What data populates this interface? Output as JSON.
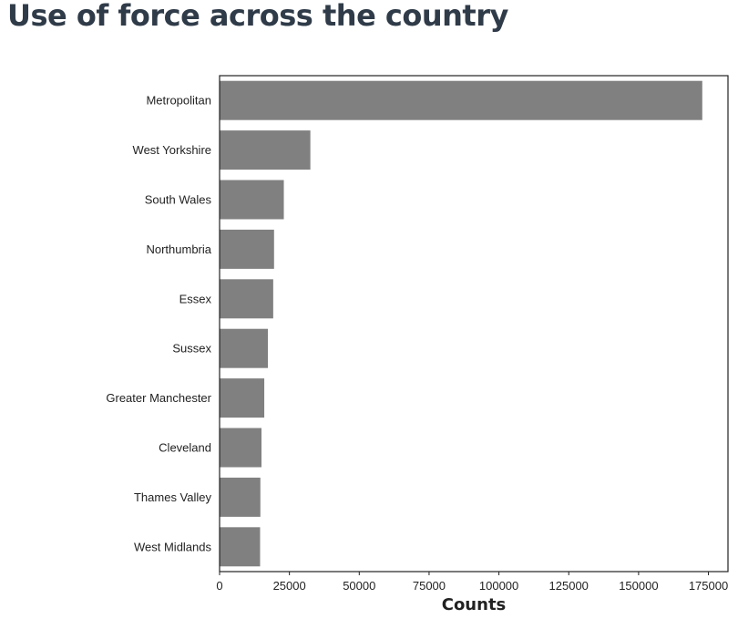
{
  "chart_data": {
    "type": "bar",
    "orientation": "horizontal",
    "title": "Use of force across the country",
    "xlabel": "Counts",
    "ylabel": "",
    "categories": [
      "Metropolitan",
      "West Yorkshire",
      "South Wales",
      "Northumbria",
      "Essex",
      "Sussex",
      "Greater Manchester",
      "Cleveland",
      "Thames Valley",
      "West Midlands"
    ],
    "values": [
      172800,
      32500,
      23000,
      19500,
      19200,
      17300,
      16000,
      15000,
      14600,
      14500
    ],
    "xlim": [
      0,
      182000
    ],
    "xticks": [
      0,
      25000,
      50000,
      75000,
      100000,
      125000,
      150000,
      175000
    ],
    "xtick_labels": [
      "0",
      "25000",
      "50000",
      "75000",
      "100000",
      "125000",
      "150000",
      "175000"
    ],
    "bar_color": "#808080",
    "grid": false
  }
}
